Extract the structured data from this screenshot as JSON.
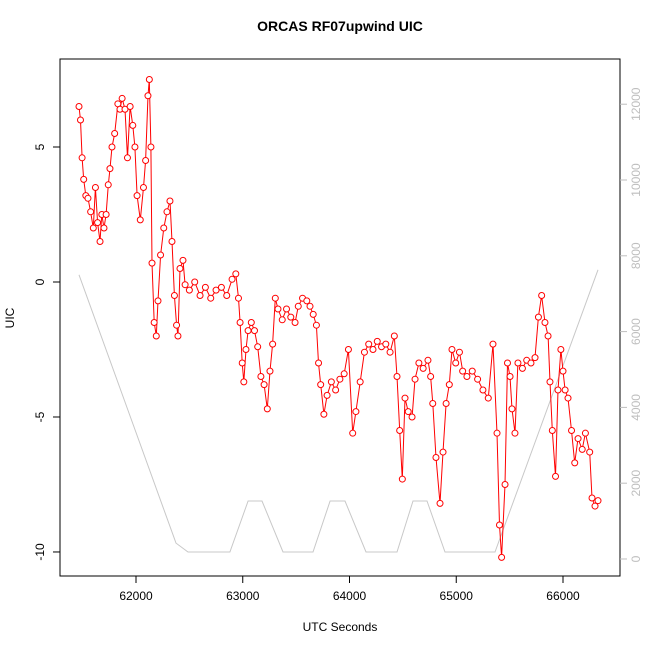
{
  "chart_data": {
    "type": "line",
    "title": "ORCAS RF07upwind UIC",
    "xlabel": "UTC Seconds",
    "ylabel": "UIC",
    "xlim": [
      61288,
      66534
    ],
    "xticks": [
      62000,
      63000,
      64000,
      65000,
      66000
    ],
    "ylim": [
      -10.89,
      8.26
    ],
    "yticks": [
      -10,
      -5,
      0,
      5
    ],
    "y2lim": [
      -449,
      13193
    ],
    "y2ticks": [
      0,
      2000,
      4000,
      6000,
      8000,
      10000,
      12000
    ],
    "y2tick_color": "#bebebe",
    "series": [
      {
        "color": "#ff0000",
        "markers": true,
        "x": [
          61466,
          61480,
          61495,
          61510,
          61530,
          61550,
          61575,
          61600,
          61620,
          61640,
          61663,
          61680,
          61700,
          61720,
          61740,
          61756,
          61775,
          61800,
          61830,
          61850,
          61870,
          61897,
          61920,
          61945,
          61970,
          61990,
          62010,
          62040,
          62070,
          62090,
          62112,
          62125,
          62140,
          62150,
          62170,
          62190,
          62206,
          62230,
          62260,
          62290,
          62318,
          62337,
          62360,
          62380,
          62393,
          62412,
          62440,
          62460,
          62500,
          62550,
          62600,
          62650,
          62700,
          62750,
          62800,
          62850,
          62900,
          62935,
          62960,
          62975,
          62995,
          63010,
          63030,
          63050,
          63080,
          63110,
          63140,
          63170,
          63200,
          63230,
          63255,
          63280,
          63305,
          63330,
          63370,
          63410,
          63450,
          63490,
          63520,
          63560,
          63600,
          63630,
          63660,
          63690,
          63710,
          63730,
          63760,
          63790,
          63830,
          63870,
          63910,
          63950,
          63990,
          64030,
          64060,
          64100,
          64140,
          64180,
          64220,
          64260,
          64300,
          64340,
          64380,
          64420,
          64445,
          64470,
          64495,
          64520,
          64550,
          64586,
          64614,
          64650,
          64690,
          64735,
          64760,
          64780,
          64810,
          64848,
          64876,
          64905,
          64935,
          64960,
          64995,
          65030,
          65060,
          65100,
          65150,
          65200,
          65250,
          65300,
          65344,
          65382,
          65405,
          65425,
          65457,
          65480,
          65504,
          65522,
          65550,
          65578,
          65620,
          65660,
          65700,
          65738,
          65770,
          65800,
          65831,
          65860,
          65878,
          65900,
          65930,
          65953,
          65980,
          66000,
          66020,
          66047,
          66080,
          66110,
          66141,
          66180,
          66210,
          66250,
          66272,
          66300,
          66328
        ],
        "values": [
          6.5,
          6.0,
          4.6,
          3.8,
          3.2,
          3.1,
          2.6,
          2.0,
          3.5,
          2.2,
          1.5,
          2.5,
          2.0,
          2.5,
          3.6,
          4.2,
          5.0,
          5.5,
          6.6,
          6.4,
          6.8,
          6.4,
          4.6,
          6.5,
          5.8,
          5.0,
          3.2,
          2.3,
          3.5,
          4.5,
          6.9,
          7.5,
          5.0,
          0.7,
          -1.5,
          -2.0,
          -0.7,
          1.0,
          2.0,
          2.6,
          3.0,
          1.5,
          -0.5,
          -1.6,
          -2.0,
          0.5,
          0.8,
          -0.1,
          -0.3,
          0.0,
          -0.5,
          -0.2,
          -0.6,
          -0.3,
          -0.2,
          -0.5,
          0.1,
          0.3,
          -0.6,
          -1.5,
          -3.0,
          -3.7,
          -2.5,
          -1.8,
          -1.5,
          -1.8,
          -2.4,
          -3.5,
          -3.8,
          -4.7,
          -3.3,
          -2.3,
          -0.6,
          -1.0,
          -1.4,
          -1.0,
          -1.3,
          -1.5,
          -0.9,
          -0.6,
          -0.7,
          -0.9,
          -1.2,
          -1.6,
          -3.0,
          -3.8,
          -4.9,
          -4.2,
          -3.7,
          -4.0,
          -3.6,
          -3.4,
          -2.5,
          -5.6,
          -4.8,
          -3.7,
          -2.6,
          -2.3,
          -2.5,
          -2.2,
          -2.4,
          -2.3,
          -2.6,
          -2.0,
          -3.5,
          -5.5,
          -7.3,
          -4.3,
          -4.8,
          -5.0,
          -3.6,
          -3.0,
          -3.2,
          -2.9,
          -3.5,
          -4.5,
          -6.5,
          -8.2,
          -6.3,
          -4.5,
          -3.8,
          -2.5,
          -3.0,
          -2.6,
          -3.3,
          -3.5,
          -3.3,
          -3.6,
          -4.0,
          -4.3,
          -2.3,
          -5.6,
          -9.0,
          -10.2,
          -7.5,
          -3.0,
          -3.5,
          -4.7,
          -5.6,
          -3.0,
          -3.2,
          -2.9,
          -3.0,
          -2.8,
          -1.3,
          -0.5,
          -1.5,
          -2.0,
          -3.7,
          -5.5,
          -7.2,
          -4.0,
          -2.5,
          -3.3,
          -4.0,
          -4.3,
          -5.5,
          -6.7,
          -5.8,
          -6.2,
          -5.6,
          -6.3,
          -8.0,
          -8.3,
          -8.1
        ]
      },
      {
        "color": "#c8c8c8",
        "axis": "y2",
        "markers": false,
        "x": [
          61466,
          62375,
          62487,
          62880,
          63050,
          63180,
          63377,
          63658,
          63818,
          63958,
          64155,
          64445,
          64595,
          64726,
          64895,
          65363,
          66328
        ],
        "values": [
          7500,
          420,
          185,
          185,
          1530,
          1530,
          185,
          185,
          1530,
          1530,
          185,
          185,
          1530,
          1530,
          185,
          185,
          7630
        ]
      }
    ]
  }
}
